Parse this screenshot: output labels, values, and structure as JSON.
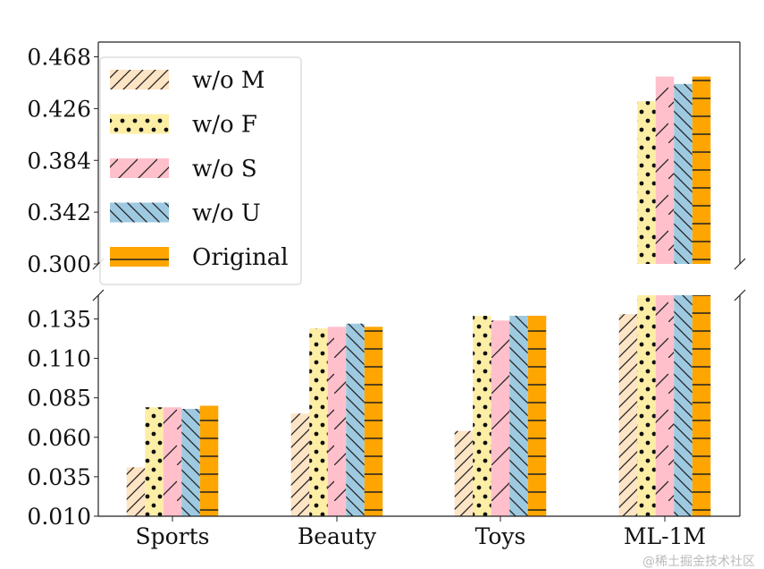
{
  "chart_data": {
    "type": "bar",
    "title": "",
    "xlabel": "",
    "ylabel": "",
    "broken_axis": true,
    "categories": [
      "Sports",
      "Beauty",
      "Toys",
      "ML-1M"
    ],
    "series": [
      {
        "name": "w/o M",
        "color": "#fde4c4",
        "hatch": "diagonal",
        "values": [
          0.041,
          0.075,
          0.064,
          0.138
        ]
      },
      {
        "name": "w/o F",
        "color": "#fdeea6",
        "hatch": "dots",
        "values": [
          0.079,
          0.129,
          0.137,
          0.432
        ]
      },
      {
        "name": "w/o S",
        "color": "#ffc0cb",
        "hatch": "sparse-diagonal",
        "values": [
          0.079,
          0.13,
          0.134,
          0.452
        ]
      },
      {
        "name": "w/o U",
        "color": "#9ecae1",
        "hatch": "backdiagonal",
        "values": [
          0.078,
          0.132,
          0.137,
          0.446
        ]
      },
      {
        "name": "Original",
        "color": "#ffa500",
        "hatch": "horizontal",
        "values": [
          0.08,
          0.13,
          0.137,
          0.452
        ]
      }
    ],
    "lower_ylim": [
      0.01,
      0.15
    ],
    "upper_ylim": [
      0.3,
      0.48
    ],
    "lower_yticks": [
      "0.010",
      "0.035",
      "0.060",
      "0.085",
      "0.110",
      "0.135"
    ],
    "upper_yticks": [
      "0.300",
      "0.342",
      "0.384",
      "0.426",
      "0.468"
    ],
    "legend_position": "top-left",
    "grid": false
  },
  "watermark": "@稀土掘金技术社区"
}
